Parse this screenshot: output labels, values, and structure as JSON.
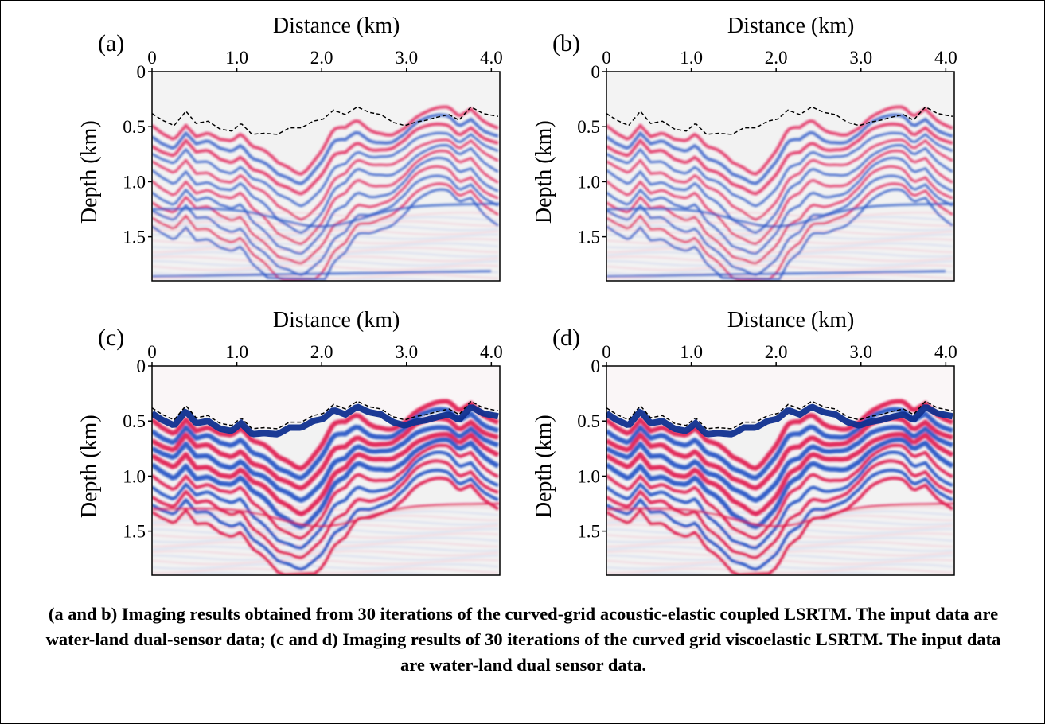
{
  "figure": {
    "panels": [
      {
        "label": "(a)",
        "xlabel": "Distance (km)",
        "ylabel": "Depth (km)",
        "xticks": [
          "0",
          "1.0",
          "2.0",
          "3.0",
          "4.0"
        ],
        "yticks": [
          "0",
          "0.5",
          "1.0",
          "1.5"
        ],
        "style": "acoustic-elastic"
      },
      {
        "label": "(b)",
        "xlabel": "Distance (km)",
        "ylabel": "Depth (km)",
        "xticks": [
          "0",
          "1.0",
          "2.0",
          "3.0",
          "4.0"
        ],
        "yticks": [
          "0",
          "0.5",
          "1.0",
          "1.5"
        ],
        "style": "acoustic-elastic"
      },
      {
        "label": "(c)",
        "xlabel": "Distance (km)",
        "ylabel": "Depth (km)",
        "xticks": [
          "0",
          "1.0",
          "2.0",
          "3.0",
          "4.0"
        ],
        "yticks": [
          "0",
          "0.5",
          "1.0",
          "1.5"
        ],
        "style": "viscoelastic"
      },
      {
        "label": "(d)",
        "xlabel": "Distance (km)",
        "ylabel": "Depth (km)",
        "xticks": [
          "0",
          "1.0",
          "2.0",
          "3.0",
          "4.0"
        ],
        "yticks": [
          "0",
          "0.5",
          "1.0",
          "1.5"
        ],
        "style": "viscoelastic"
      }
    ],
    "axes": {
      "xlim": [
        0,
        4.1
      ],
      "ylim": [
        0,
        1.9
      ]
    },
    "colors": {
      "positive": "#e0144c",
      "negative": "#1f4fc4",
      "background": "#f2f2f2",
      "interface": "#000000"
    },
    "caption": "(a and b) Imaging results obtained from 30 iterations of the curved-grid acoustic-elastic coupled LSRTM. The input data are water-land dual-sensor data; (c and d) Imaging results of 30 iterations of the curved grid viscoelastic LSRTM. The input data are water-land dual sensor data."
  }
}
